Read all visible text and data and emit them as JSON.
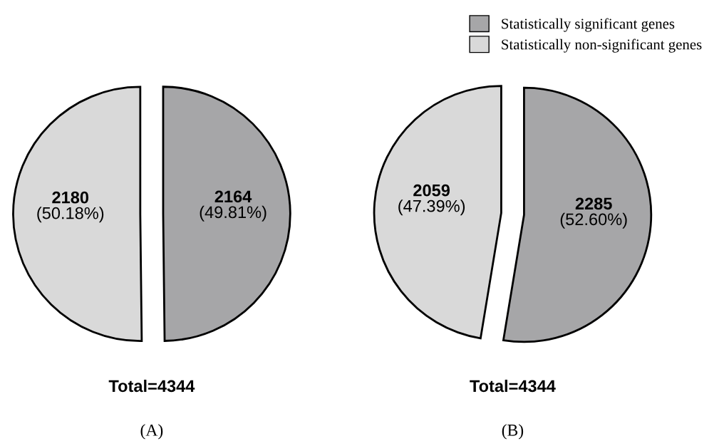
{
  "chart_data": [
    {
      "type": "pie",
      "title": "Total=4344",
      "annotations": [
        "(A)"
      ],
      "categories": [
        null,
        null
      ],
      "values": [
        2164,
        2180
      ],
      "colors": [
        "#a6a6a8",
        "#d9d9d9"
      ],
      "value_labels": [
        "2164\n(49.81%)",
        "2180\n(50.18%)"
      ],
      "legend": false
    },
    {
      "type": "pie",
      "title": "Total=4344",
      "annotations": [
        "(B)"
      ],
      "categories": [
        "Statistically significant genes",
        "Statistically non-significant genes"
      ],
      "values": [
        2285,
        2059
      ],
      "colors": [
        "#a6a6a8",
        "#d9d9d9"
      ],
      "value_labels": [
        "2285\n(52.60%)",
        "2059\n(47.39%)"
      ],
      "legend": "top right"
    }
  ]
}
